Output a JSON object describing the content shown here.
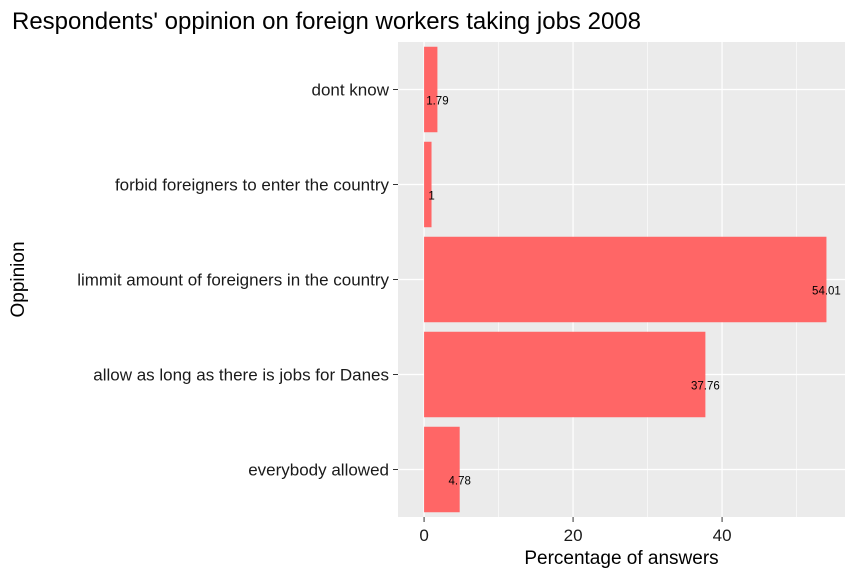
{
  "chart_data": {
    "type": "bar",
    "orientation": "horizontal",
    "title": "Respondents' oppinion on foreign workers taking jobs 2008",
    "xlabel": "Percentage of answers",
    "ylabel": "Oppinion",
    "categories": [
      "everybody allowed",
      "allow as long as there is jobs for Danes",
      "limmit amount of foreigners in the country",
      "forbid foreigners to enter the country",
      "dont know"
    ],
    "values": [
      4.78,
      37.76,
      54.01,
      1,
      1.79
    ],
    "data_labels": [
      "4.78",
      "37.76",
      "54.01",
      "1",
      "1.79"
    ],
    "xlim": [
      -3.5,
      56.5
    ],
    "xticks": [
      0,
      20,
      40
    ],
    "bar_color": "#ff6666",
    "panel_color": "#ebebeb",
    "grid": true
  }
}
